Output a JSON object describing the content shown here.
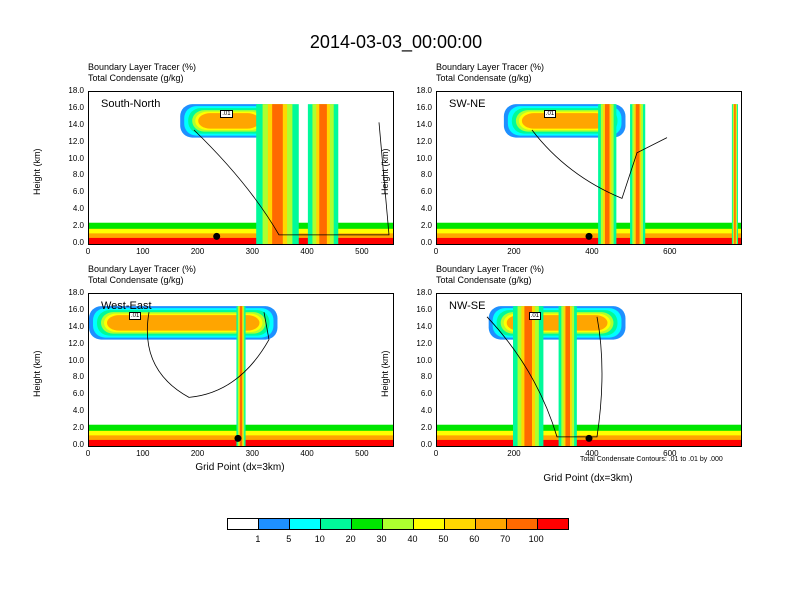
{
  "title": "2014-03-03_00:00:00",
  "header_line1": "Boundary Layer Tracer    (%)",
  "header_line2": "Total Condensate   (g/kg)",
  "y_axis_label": "Height (km)",
  "x_axis_label": "Grid Point (dx=3km)",
  "contour_info": "Total Condensate Contours: .01 to .01 by .000",
  "panels": [
    {
      "name": "South-North",
      "xticks": [
        "0",
        "100",
        "200",
        "300",
        "400",
        "500"
      ],
      "xmax": 555
    },
    {
      "name": "SW-NE",
      "xticks": [
        "0",
        "200",
        "400",
        "600"
      ],
      "xmax": 780
    },
    {
      "name": "West-East",
      "xticks": [
        "0",
        "100",
        "200",
        "300",
        "400",
        "500"
      ],
      "xmax": 555
    },
    {
      "name": "NW-SE",
      "xticks": [
        "0",
        "200",
        "400",
        "600"
      ],
      "xmax": 780
    }
  ],
  "yticks": [
    "0.0",
    "2.0",
    "4.0",
    "6.0",
    "8.0",
    "10.0",
    "12.0",
    "14.0",
    "16.0",
    "18.0"
  ],
  "contour_label": ".01",
  "legend": {
    "labels": [
      "1",
      "5",
      "10",
      "20",
      "30",
      "40",
      "50",
      "60",
      "70",
      "100"
    ],
    "colors": [
      "#ffffff",
      "#1e90ff",
      "#00ffff",
      "#00fa9a",
      "#00e600",
      "#adff2f",
      "#ffff00",
      "#ffd700",
      "#ffa500",
      "#ff6a00",
      "#ff0000"
    ]
  },
  "chart_data": {
    "type": "heatmap",
    "title": "2014-03-03_00:00:00",
    "ylabel": "Height (km)",
    "xlabel": "Grid Point (dx=3km)",
    "ylim": [
      0,
      18
    ],
    "color_levels": [
      1,
      5,
      10,
      20,
      30,
      40,
      50,
      60,
      70,
      100
    ],
    "panels": [
      "South-North",
      "SW-NE",
      "West-East",
      "NW-SE"
    ]
  }
}
